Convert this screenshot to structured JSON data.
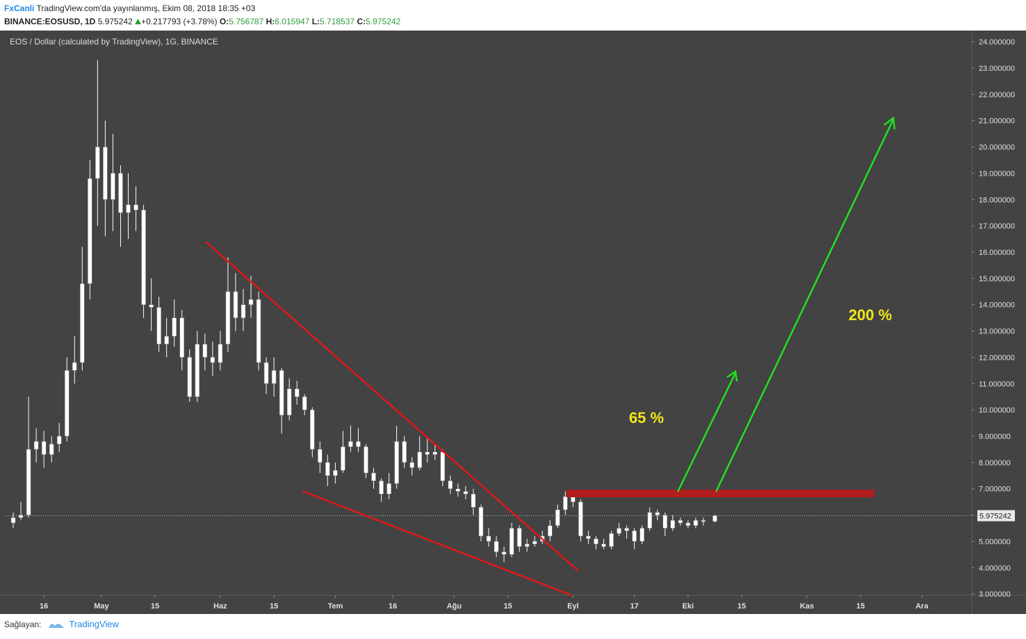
{
  "header": {
    "brand": "FxCanli",
    "published": "TradingView.com'da yayınlanmış, Ekim 08, 2018 18:35 +03",
    "symbol": "BINANCE:EOSUSD, 1D",
    "change": "+0.217793 (+3.78%)",
    "o_label": "O:",
    "h_label": "H:",
    "l_label": "L:",
    "c_label": "C:"
  },
  "footer": {
    "provider_label": "Sağlayan:",
    "provider": "TradingView"
  },
  "chart_data": {
    "type": "candlestick",
    "title": "EOS / Dollar (calculated by TradingView), 1G, BINANCE",
    "color": "#ffffff",
    "annotations": [
      "65 %",
      "200 %"
    ],
    "x": [
      "2018-04-08",
      "2018-04-10",
      "2018-04-12",
      "2018-04-14",
      "2018-04-16",
      "2018-04-18",
      "2018-04-20",
      "2018-04-22",
      "2018-04-24",
      "2018-04-26",
      "2018-04-28",
      "2018-04-30",
      "2018-05-02",
      "2018-05-04",
      "2018-05-06",
      "2018-05-08",
      "2018-05-10",
      "2018-05-12",
      "2018-05-14",
      "2018-05-16",
      "2018-05-18",
      "2018-05-20",
      "2018-05-22",
      "2018-05-24",
      "2018-05-26",
      "2018-05-28",
      "2018-05-30",
      "2018-06-01",
      "2018-06-03",
      "2018-06-05",
      "2018-06-07",
      "2018-06-09",
      "2018-06-11",
      "2018-06-13",
      "2018-06-15",
      "2018-06-17",
      "2018-06-19",
      "2018-06-21",
      "2018-06-23",
      "2018-06-25",
      "2018-06-27",
      "2018-06-29",
      "2018-07-01",
      "2018-07-03",
      "2018-07-05",
      "2018-07-07",
      "2018-07-09",
      "2018-07-11",
      "2018-07-13",
      "2018-07-15",
      "2018-07-17",
      "2018-07-19",
      "2018-07-21",
      "2018-07-23",
      "2018-07-25",
      "2018-07-27",
      "2018-07-29",
      "2018-07-31",
      "2018-08-02",
      "2018-08-04",
      "2018-08-06",
      "2018-08-08",
      "2018-08-10",
      "2018-08-12",
      "2018-08-14",
      "2018-08-16",
      "2018-08-18",
      "2018-08-20",
      "2018-08-22",
      "2018-08-24",
      "2018-08-26",
      "2018-08-28",
      "2018-08-30",
      "2018-09-01",
      "2018-09-03",
      "2018-09-05",
      "2018-09-07",
      "2018-09-09",
      "2018-09-11",
      "2018-09-13",
      "2018-09-15",
      "2018-09-17",
      "2018-09-19",
      "2018-09-21",
      "2018-09-23",
      "2018-09-25",
      "2018-09-27",
      "2018-09-29",
      "2018-10-01",
      "2018-10-03",
      "2018-10-05",
      "2018-10-08"
    ],
    "open": [
      5.7,
      5.9,
      6.0,
      8.5,
      8.8,
      8.3,
      8.7,
      9.0,
      11.5,
      11.8,
      14.8,
      18.8,
      20.0,
      18.0,
      19.0,
      17.5,
      17.8,
      17.6,
      14.0,
      13.9,
      12.5,
      12.8,
      13.5,
      12.0,
      10.5,
      12.5,
      12.0,
      11.8,
      12.5,
      14.5,
      13.5,
      14.0,
      14.2,
      11.8,
      11.0,
      11.5,
      9.8,
      10.8,
      10.5,
      10.0,
      8.5,
      8.0,
      7.5,
      7.7,
      8.6,
      8.8,
      8.6,
      7.6,
      7.3,
      6.8,
      7.2,
      8.8,
      8.0,
      7.8,
      8.4,
      8.3,
      8.4,
      7.3,
      7.0,
      6.9,
      6.8,
      6.3,
      5.2,
      5.0,
      4.6,
      4.5,
      5.5,
      4.8,
      4.9,
      5.0,
      5.2,
      5.6,
      6.2,
      6.7,
      6.5,
      5.2,
      5.1,
      4.9,
      4.8,
      5.3,
      5.5,
      5.4,
      5.0,
      5.5,
      6.1,
      6.0,
      5.5,
      5.8,
      5.7,
      5.6,
      5.8,
      5.756787
    ],
    "high": [
      6.1,
      6.5,
      10.5,
      9.3,
      9.2,
      9.0,
      9.5,
      12.0,
      12.8,
      16.2,
      19.5,
      23.3,
      21.0,
      20.5,
      19.3,
      19.0,
      18.5,
      17.8,
      15.0,
      14.3,
      13.5,
      14.2,
      13.8,
      12.3,
      13.0,
      12.9,
      12.6,
      13.0,
      15.8,
      15.2,
      14.6,
      15.1,
      14.5,
      12.0,
      12.0,
      11.6,
      11.2,
      11.1,
      10.6,
      10.1,
      8.8,
      8.3,
      8.0,
      9.2,
      9.4,
      9.3,
      8.7,
      7.8,
      7.4,
      7.6,
      9.4,
      9.0,
      8.2,
      9.0,
      8.9,
      8.7,
      8.5,
      7.5,
      7.2,
      7.1,
      7.0,
      6.4,
      5.5,
      5.2,
      4.8,
      5.7,
      5.6,
      5.1,
      5.2,
      5.4,
      5.8,
      6.4,
      6.9,
      6.8,
      6.6,
      5.4,
      5.2,
      5.1,
      5.4,
      5.7,
      5.6,
      5.5,
      5.6,
      6.3,
      6.2,
      6.1,
      6.0,
      5.9,
      5.8,
      5.9,
      5.9,
      6.015947
    ],
    "low": [
      5.5,
      5.8,
      5.9,
      8.0,
      7.8,
      8.0,
      8.4,
      8.8,
      11.0,
      11.5,
      14.2,
      17.0,
      16.6,
      16.8,
      16.2,
      16.5,
      16.8,
      13.5,
      13.0,
      12.2,
      12.0,
      12.4,
      11.5,
      10.3,
      10.3,
      11.5,
      11.3,
      11.5,
      12.2,
      13.0,
      13.0,
      13.5,
      11.5,
      10.6,
      10.5,
      9.1,
      9.6,
      10.2,
      9.8,
      8.2,
      7.6,
      7.1,
      7.2,
      7.6,
      8.4,
      8.4,
      7.4,
      7.0,
      6.5,
      6.6,
      7.0,
      7.8,
      7.5,
      7.7,
      8.0,
      8.1,
      7.1,
      6.8,
      6.7,
      6.6,
      6.0,
      5.0,
      4.8,
      4.4,
      4.2,
      4.4,
      4.6,
      4.6,
      4.8,
      4.9,
      5.0,
      5.5,
      6.0,
      6.3,
      5.0,
      4.9,
      4.7,
      4.7,
      4.7,
      5.2,
      5.1,
      4.7,
      4.9,
      5.4,
      5.8,
      5.2,
      5.4,
      5.6,
      5.5,
      5.5,
      5.6,
      5.718537
    ],
    "close": [
      5.9,
      6.0,
      8.5,
      8.8,
      8.3,
      8.7,
      9.0,
      11.5,
      11.8,
      14.8,
      18.8,
      20.0,
      18.0,
      19.0,
      17.5,
      17.8,
      17.6,
      14.0,
      13.9,
      12.5,
      12.8,
      13.5,
      12.0,
      10.5,
      12.5,
      12.0,
      11.8,
      12.5,
      14.5,
      13.5,
      14.0,
      14.2,
      11.8,
      11.0,
      11.5,
      9.8,
      10.8,
      10.5,
      10.0,
      8.5,
      8.0,
      7.5,
      7.7,
      8.6,
      8.8,
      8.6,
      7.6,
      7.3,
      6.8,
      7.2,
      8.8,
      8.0,
      7.8,
      8.4,
      8.3,
      8.4,
      7.3,
      7.0,
      6.9,
      6.8,
      6.3,
      5.2,
      5.0,
      4.6,
      4.5,
      5.5,
      4.8,
      4.9,
      5.0,
      5.2,
      5.6,
      6.2,
      6.7,
      6.5,
      5.2,
      5.1,
      4.9,
      4.8,
      5.3,
      5.5,
      5.4,
      5.0,
      5.5,
      6.1,
      6.0,
      5.5,
      5.8,
      5.7,
      5.6,
      5.8,
      5.75,
      5.975242
    ],
    "xlim": [
      "2018-04-06",
      "2018-12-14"
    ],
    "xticks": [
      {
        "value": "2018-04-16",
        "label": "16"
      },
      {
        "value": "2018-05-01",
        "label": "May"
      },
      {
        "value": "2018-05-15",
        "label": "15"
      },
      {
        "value": "2018-06-01",
        "label": "Haz"
      },
      {
        "value": "2018-06-15",
        "label": "15"
      },
      {
        "value": "2018-07-01",
        "label": "Tem"
      },
      {
        "value": "2018-07-16",
        "label": "16"
      },
      {
        "value": "2018-08-01",
        "label": "Ağu"
      },
      {
        "value": "2018-08-15",
        "label": "15"
      },
      {
        "value": "2018-09-01",
        "label": "Eyl"
      },
      {
        "value": "2018-09-17",
        "label": "17"
      },
      {
        "value": "2018-10-01",
        "label": "Eki"
      },
      {
        "value": "2018-10-15",
        "label": "15"
      },
      {
        "value": "2018-11-01",
        "label": "Kas"
      },
      {
        "value": "2018-11-15",
        "label": "15"
      },
      {
        "value": "2018-12-01",
        "label": "Ara"
      }
    ],
    "ylim": [
      2.95,
      24.4
    ],
    "yticks": [
      {
        "value": 3,
        "label": "3.000000"
      },
      {
        "value": 4,
        "label": "4.000000"
      },
      {
        "value": 5,
        "label": "5.000000"
      },
      {
        "value": 6,
        "label": "6.000000"
      },
      {
        "value": 7,
        "label": "7.000000"
      },
      {
        "value": 8,
        "label": "8.000000"
      },
      {
        "value": 9,
        "label": "9.000000"
      },
      {
        "value": 10,
        "label": "10.000000"
      },
      {
        "value": 11,
        "label": "11.000000"
      },
      {
        "value": 12,
        "label": "12.000000"
      },
      {
        "value": 13,
        "label": "13.000000"
      },
      {
        "value": 14,
        "label": "14.000000"
      },
      {
        "value": 15,
        "label": "15.000000"
      },
      {
        "value": 16,
        "label": "16.000000"
      },
      {
        "value": 17,
        "label": "17.000000"
      },
      {
        "value": 18,
        "label": "18.000000"
      },
      {
        "value": 19,
        "label": "19.000000"
      },
      {
        "value": 20,
        "label": "20.000000"
      },
      {
        "value": 21,
        "label": "21.000000"
      },
      {
        "value": 22,
        "label": "22.000000"
      },
      {
        "value": 23,
        "label": "23.000000"
      },
      {
        "value": 24,
        "label": "24.000000"
      }
    ]
  }
}
